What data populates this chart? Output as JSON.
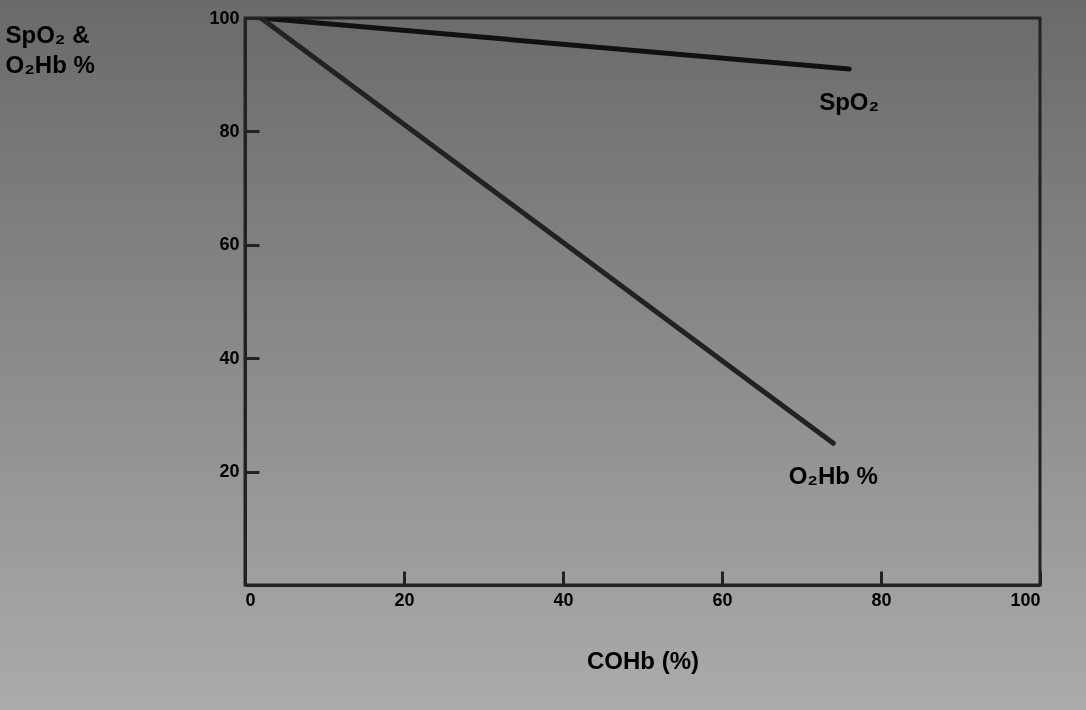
{
  "chart_data": {
    "type": "line",
    "xlabel": "COHb (%)",
    "ylabel": "SpO₂ & O₂Hb %",
    "xlim": [
      0,
      100
    ],
    "ylim": [
      0,
      100
    ],
    "xticks": [
      0,
      20,
      40,
      60,
      80,
      100
    ],
    "yticks": [
      20,
      40,
      60,
      80,
      100
    ],
    "grid": false,
    "marker": "none",
    "line_style": "solid",
    "series": [
      {
        "name": "SpO₂",
        "color": "#111111",
        "x": [
          2,
          76
        ],
        "values": [
          100,
          91
        ]
      },
      {
        "name": "O₂Hb %",
        "color": "#222222",
        "x": [
          2,
          74
        ],
        "values": [
          100,
          25
        ]
      }
    ]
  }
}
